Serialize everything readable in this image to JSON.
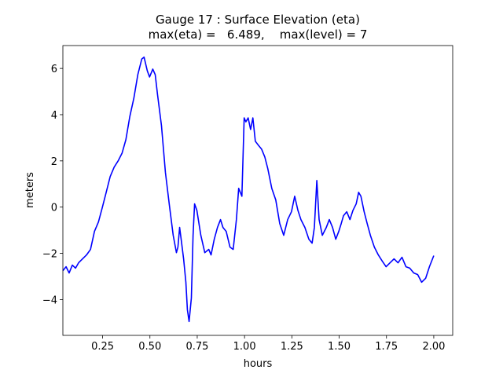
{
  "chart_data": {
    "type": "line",
    "title": "Gauge 17 : Surface Elevation (eta)",
    "subtitle": "max(eta) =   6.489,    max(level) = 7",
    "x_label": "hours",
    "y_label": "meters",
    "xlim": [
      0.04,
      2.1
    ],
    "ylim": [
      -5.55,
      6.99
    ],
    "xticks": [
      {
        "value": 0.25,
        "label": "0.25"
      },
      {
        "value": 0.5,
        "label": "0.50"
      },
      {
        "value": 0.75,
        "label": "0.75"
      },
      {
        "value": 1,
        "label": "1.00"
      },
      {
        "value": 1.25,
        "label": "1.25"
      },
      {
        "value": 1.5,
        "label": "1.50"
      },
      {
        "value": 1.75,
        "label": "1.75"
      },
      {
        "value": 2,
        "label": "2.00"
      }
    ],
    "yticks": [
      {
        "value": -4,
        "label": "−4"
      },
      {
        "value": -2,
        "label": "−2"
      },
      0,
      2,
      4,
      6
    ],
    "x": [
      0.04,
      0.057,
      0.073,
      0.09,
      0.107,
      0.123,
      0.165,
      0.186,
      0.207,
      0.228,
      0.248,
      0.269,
      0.29,
      0.311,
      0.332,
      0.353,
      0.373,
      0.394,
      0.415,
      0.436,
      0.457,
      0.469,
      0.486,
      0.498,
      0.515,
      0.528,
      0.54,
      0.561,
      0.582,
      0.603,
      0.623,
      0.64,
      0.648,
      0.657,
      0.665,
      0.678,
      0.69,
      0.698,
      0.707,
      0.719,
      0.728,
      0.736,
      0.748,
      0.769,
      0.79,
      0.811,
      0.823,
      0.84,
      0.857,
      0.873,
      0.886,
      0.903,
      0.923,
      0.94,
      0.957,
      0.969,
      0.986,
      0.998,
      1.007,
      1.019,
      1.032,
      1.044,
      1.057,
      1.073,
      1.09,
      1.107,
      1.123,
      1.144,
      1.165,
      1.186,
      1.207,
      1.228,
      1.248,
      1.265,
      1.282,
      1.298,
      1.319,
      1.34,
      1.357,
      1.369,
      1.382,
      1.394,
      1.411,
      1.432,
      1.448,
      1.465,
      1.482,
      1.498,
      1.511,
      1.523,
      1.54,
      1.557,
      1.573,
      1.59,
      1.603,
      1.615,
      1.632,
      1.648,
      1.665,
      1.686,
      1.707,
      1.728,
      1.748,
      1.769,
      1.79,
      1.811,
      1.832,
      1.853,
      1.873,
      1.894,
      1.915,
      1.936,
      1.957,
      1.977,
      2.0
    ],
    "series": [
      {
        "name": "eta",
        "color": "#0000ff",
        "values": [
          -2.75,
          -2.58,
          -2.85,
          -2.51,
          -2.64,
          -2.41,
          -2.07,
          -1.83,
          -1.05,
          -0.64,
          -0.03,
          0.64,
          1.32,
          1.73,
          2.0,
          2.34,
          2.92,
          3.93,
          4.71,
          5.73,
          6.41,
          6.49,
          5.9,
          5.63,
          5.97,
          5.73,
          4.88,
          3.53,
          1.49,
          0.07,
          -1.22,
          -1.97,
          -1.73,
          -0.88,
          -1.39,
          -2.24,
          -3.25,
          -4.44,
          -4.95,
          -3.93,
          -1.22,
          0.14,
          -0.14,
          -1.22,
          -1.97,
          -1.83,
          -2.07,
          -1.39,
          -0.88,
          -0.54,
          -0.88,
          -1.05,
          -1.73,
          -1.83,
          -0.54,
          0.81,
          0.47,
          3.86,
          3.69,
          3.86,
          3.36,
          3.86,
          2.85,
          2.68,
          2.51,
          2.17,
          1.66,
          0.81,
          0.31,
          -0.71,
          -1.22,
          -0.54,
          -0.2,
          0.47,
          -0.14,
          -0.54,
          -0.88,
          -1.39,
          -1.56,
          -0.88,
          1.15,
          -0.54,
          -1.22,
          -0.88,
          -0.54,
          -0.88,
          -1.39,
          -1.05,
          -0.71,
          -0.37,
          -0.2,
          -0.54,
          -0.14,
          0.14,
          0.64,
          0.47,
          -0.2,
          -0.71,
          -1.22,
          -1.73,
          -2.07,
          -2.34,
          -2.58,
          -2.41,
          -2.24,
          -2.41,
          -2.17,
          -2.58,
          -2.64,
          -2.85,
          -2.92,
          -3.25,
          -3.08,
          -2.58,
          -2.1
        ]
      }
    ]
  }
}
